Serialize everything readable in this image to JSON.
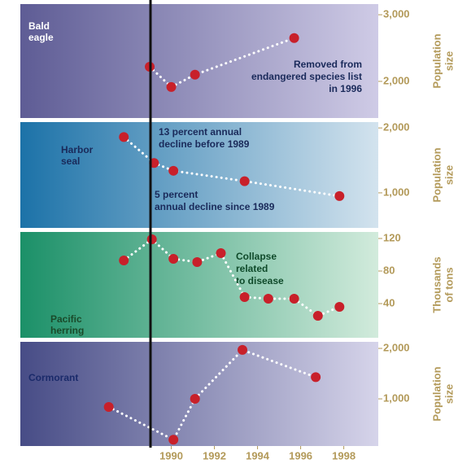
{
  "chart_data": [
    {
      "type": "line",
      "label": [
        "Bald",
        "eagle"
      ],
      "ylabel": [
        "Population",
        "size"
      ],
      "annotations": [
        [
          "Removed from",
          "endangered species list",
          "in 1996"
        ]
      ],
      "x": [
        1989,
        1990,
        1991.1,
        1995.7
      ],
      "values": [
        2220,
        1915,
        2100,
        2650
      ],
      "xlim": [
        1983,
        1999.6
      ],
      "ylim": [
        1450,
        3160
      ],
      "yticks": [
        {
          "value": 3000,
          "label": "3,000"
        },
        {
          "value": 2000,
          "label": "2,000"
        }
      ],
      "background": [
        "#5e5c95",
        "#cfcbe6"
      ],
      "color": "#c8202a"
    },
    {
      "type": "line",
      "label": [
        "Harbor",
        "seal"
      ],
      "ylabel": [
        "Population",
        "size"
      ],
      "annotations": [
        [
          "13 percent annual",
          "decline before 1989"
        ],
        [
          "5 percent",
          "annual decline since 1989"
        ]
      ],
      "x": [
        1987.8,
        1989.2,
        1990.1,
        1993.4,
        1997.8
      ],
      "values": [
        1860,
        1460,
        1340,
        1180,
        950
      ],
      "xlim": [
        1983,
        1999.6
      ],
      "ylim": [
        460,
        2090
      ],
      "yticks": [
        {
          "value": 2000,
          "label": "2,000"
        },
        {
          "value": 1000,
          "label": "1,000"
        }
      ],
      "background": [
        "#1c72a8",
        "#d3e3ee"
      ],
      "color": "#c8202a"
    },
    {
      "type": "line",
      "label": [
        "Pacific",
        "herring"
      ],
      "ylabel": [
        "Thousands",
        "of tons"
      ],
      "annotations": [
        [
          "Collapse",
          "related",
          "to disease"
        ]
      ],
      "x": [
        1987.8,
        1989.1,
        1990.1,
        1991.2,
        1992.3,
        1993.4,
        1994.5,
        1995.7,
        1996.8,
        1997.8
      ],
      "values": [
        93,
        119,
        95,
        91,
        102,
        48,
        46,
        46,
        25,
        36
      ],
      "xlim": [
        1983,
        1999.6
      ],
      "ylim": [
        -2,
        128
      ],
      "yticks": [
        120,
        80,
        40
      ],
      "background": [
        "#1b9068",
        "#d2ebdc"
      ],
      "color": "#c8202a"
    },
    {
      "type": "line",
      "label": [
        "Cormorant"
      ],
      "ylabel": [
        "Population",
        "size"
      ],
      "annotations": [],
      "x": [
        1987.1,
        1990.1,
        1991.1,
        1993.3,
        1996.7
      ],
      "values": [
        840,
        190,
        1000,
        1970,
        1430
      ],
      "xlim": [
        1983,
        1999.6
      ],
      "ylim": [
        65,
        2130
      ],
      "yticks": [
        {
          "value": 2000,
          "label": "2,000"
        },
        {
          "value": 1000,
          "label": "1,000"
        }
      ],
      "xticks": [
        1990,
        1992,
        1994,
        1996,
        1998
      ],
      "background": [
        "#474c86",
        "#d6d4ea"
      ],
      "color": "#c8202a"
    }
  ]
}
